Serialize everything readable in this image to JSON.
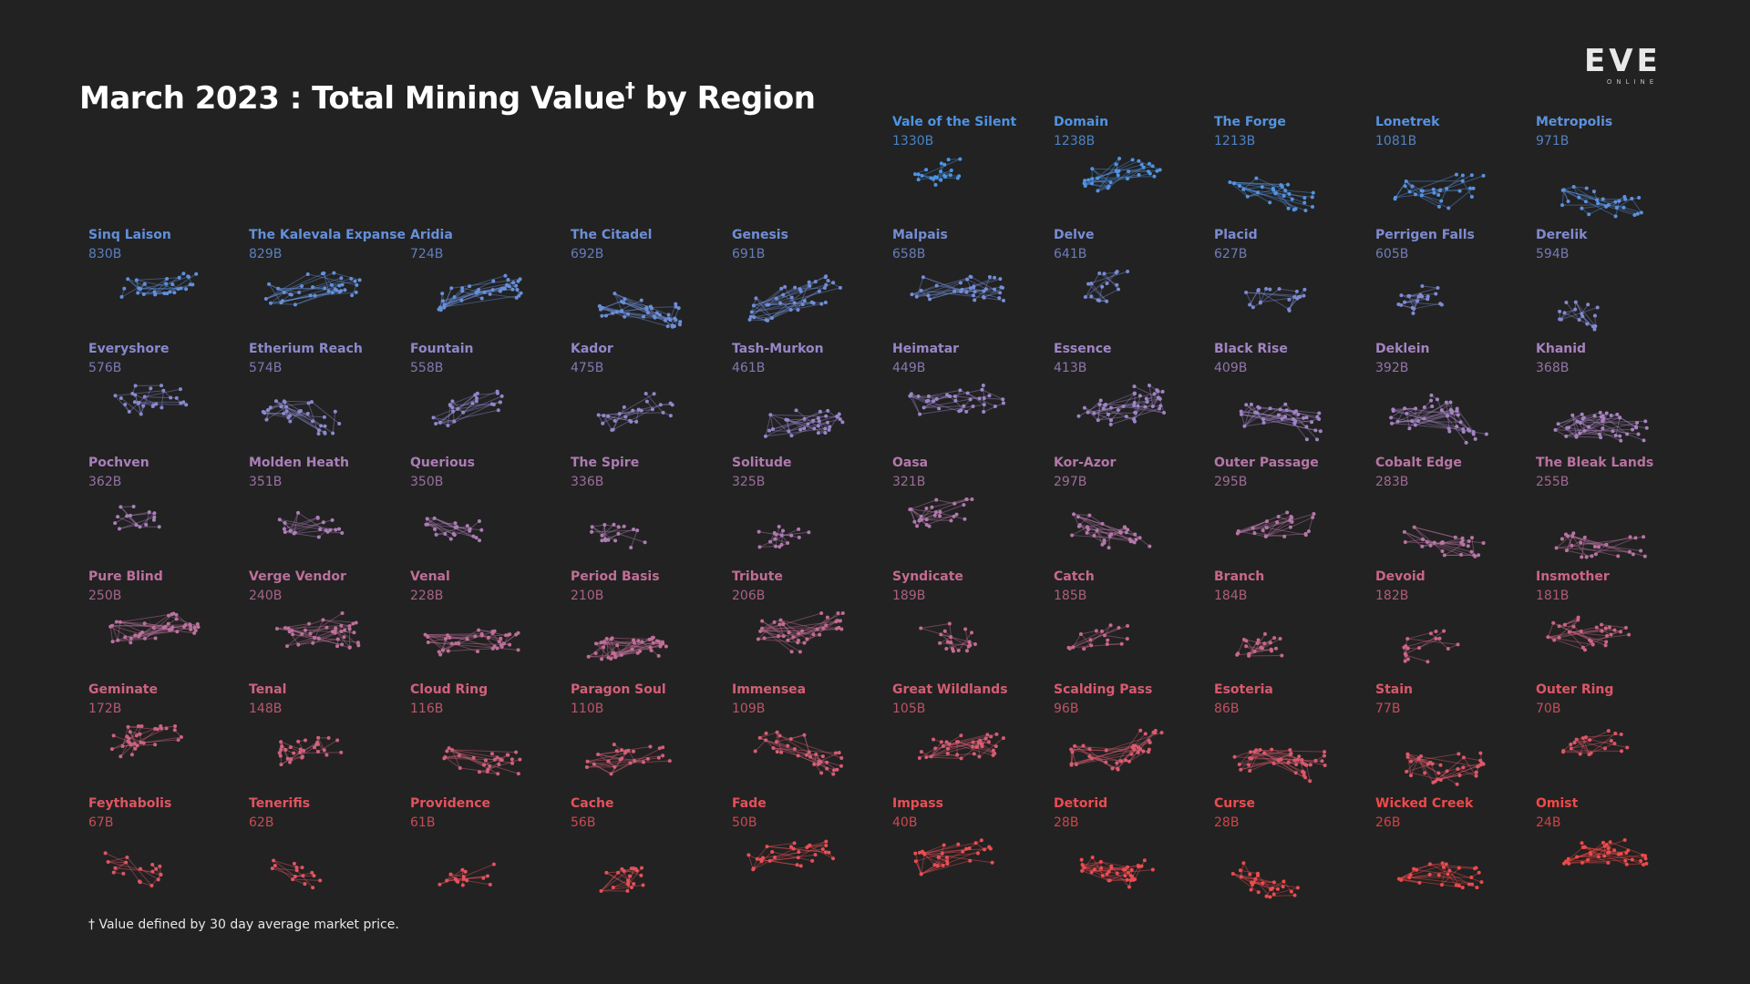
{
  "header": {
    "title": "March 2023 : Total Mining Value",
    "title_dagger": "†",
    "title_suffix": "by Region"
  },
  "logo": {
    "text": "EVE",
    "subtext": "ONLINE"
  },
  "footnote": "† Value defined by 30 day average market price.",
  "colors": {
    "high": "#4d94e3",
    "mid": "#a484c4",
    "low": "#f04848"
  },
  "chart_data": {
    "type": "small-multiples",
    "unit": "B",
    "regions": [
      {
        "name": "Vale of the Silent",
        "value": 1330
      },
      {
        "name": "Domain",
        "value": 1238
      },
      {
        "name": "The Forge",
        "value": 1213
      },
      {
        "name": "Lonetrek",
        "value": 1081
      },
      {
        "name": "Metropolis",
        "value": 971
      },
      {
        "name": "Sinq Laison",
        "value": 830
      },
      {
        "name": "The Kalevala Expanse",
        "value": 829
      },
      {
        "name": "Aridia",
        "value": 724
      },
      {
        "name": "The Citadel",
        "value": 692
      },
      {
        "name": "Genesis",
        "value": 691
      },
      {
        "name": "Malpais",
        "value": 658
      },
      {
        "name": "Delve",
        "value": 641
      },
      {
        "name": "Placid",
        "value": 627
      },
      {
        "name": "Perrigen Falls",
        "value": 605
      },
      {
        "name": "Derelik",
        "value": 594
      },
      {
        "name": "Everyshore",
        "value": 576
      },
      {
        "name": "Etherium Reach",
        "value": 574
      },
      {
        "name": "Fountain",
        "value": 558
      },
      {
        "name": "Kador",
        "value": 475
      },
      {
        "name": "Tash-Murkon",
        "value": 461
      },
      {
        "name": "Heimatar",
        "value": 449
      },
      {
        "name": "Essence",
        "value": 413
      },
      {
        "name": "Black Rise",
        "value": 409
      },
      {
        "name": "Deklein",
        "value": 392
      },
      {
        "name": "Khanid",
        "value": 368
      },
      {
        "name": "Pochven",
        "value": 362
      },
      {
        "name": "Molden Heath",
        "value": 351
      },
      {
        "name": "Querious",
        "value": 350
      },
      {
        "name": "The Spire",
        "value": 336
      },
      {
        "name": "Solitude",
        "value": 325
      },
      {
        "name": "Oasa",
        "value": 321
      },
      {
        "name": "Kor-Azor",
        "value": 297
      },
      {
        "name": "Outer Passage",
        "value": 295
      },
      {
        "name": "Cobalt Edge",
        "value": 283
      },
      {
        "name": "The Bleak Lands",
        "value": 255
      },
      {
        "name": "Pure Blind",
        "value": 250
      },
      {
        "name": "Verge Vendor",
        "value": 240
      },
      {
        "name": "Venal",
        "value": 228
      },
      {
        "name": "Period Basis",
        "value": 210
      },
      {
        "name": "Tribute",
        "value": 206
      },
      {
        "name": "Syndicate",
        "value": 189
      },
      {
        "name": "Catch",
        "value": 185
      },
      {
        "name": "Branch",
        "value": 184
      },
      {
        "name": "Devoid",
        "value": 182
      },
      {
        "name": "Insmother",
        "value": 181
      },
      {
        "name": "Geminate",
        "value": 172
      },
      {
        "name": "Tenal",
        "value": 148
      },
      {
        "name": "Cloud Ring",
        "value": 116
      },
      {
        "name": "Paragon Soul",
        "value": 110
      },
      {
        "name": "Immensea",
        "value": 109
      },
      {
        "name": "Great Wildlands",
        "value": 105
      },
      {
        "name": "Scalding Pass",
        "value": 96
      },
      {
        "name": "Esoteria",
        "value": 86
      },
      {
        "name": "Stain",
        "value": 77
      },
      {
        "name": "Outer Ring",
        "value": 70
      },
      {
        "name": "Feythabolis",
        "value": 67
      },
      {
        "name": "Tenerifis",
        "value": 62
      },
      {
        "name": "Providence",
        "value": 61
      },
      {
        "name": "Cache",
        "value": 56
      },
      {
        "name": "Fade",
        "value": 50
      },
      {
        "name": "Impass",
        "value": 40
      },
      {
        "name": "Detorid",
        "value": 28
      },
      {
        "name": "Curse",
        "value": 28
      },
      {
        "name": "Wicked Creek",
        "value": 26
      },
      {
        "name": "Omist",
        "value": 24
      }
    ]
  }
}
